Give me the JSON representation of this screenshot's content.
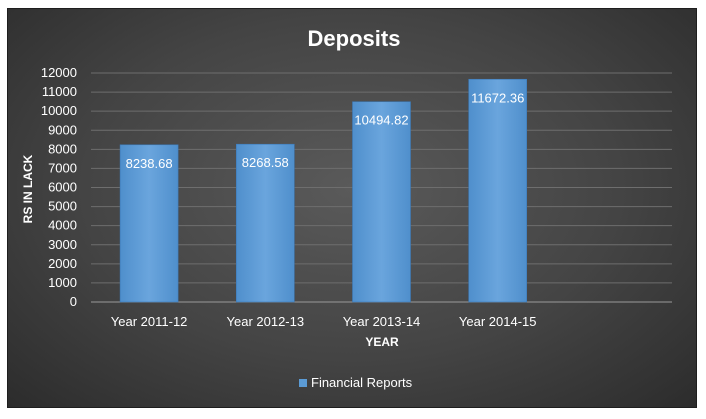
{
  "chart_data": {
    "type": "bar",
    "title": "Deposits",
    "xlabel": "YEAR",
    "ylabel": "RS IN LACK",
    "categories": [
      "Year 2011-12",
      "Year 2012-13",
      "Year 2013-14",
      "Year 2014-15",
      ""
    ],
    "series": [
      {
        "name": "Financial Reports",
        "values": [
          8238.68,
          8268.58,
          10494.82,
          11672.36,
          null
        ],
        "data_labels": [
          "8238.68",
          "8268.58",
          "10494.82",
          "11672.36",
          ""
        ]
      }
    ],
    "ylim": [
      0,
      12000
    ],
    "yticks": [
      "0",
      "1000",
      "2000",
      "3000",
      "4000",
      "5000",
      "6000",
      "7000",
      "8000",
      "9000",
      "10000",
      "11000",
      "12000"
    ],
    "grid": true,
    "legend": "bottom",
    "colors": {
      "bar": "#5b9bd5",
      "bar_light": "#76aee3",
      "background": "#444444",
      "grid": "#6e6e6e",
      "text": "#ffffff"
    }
  }
}
